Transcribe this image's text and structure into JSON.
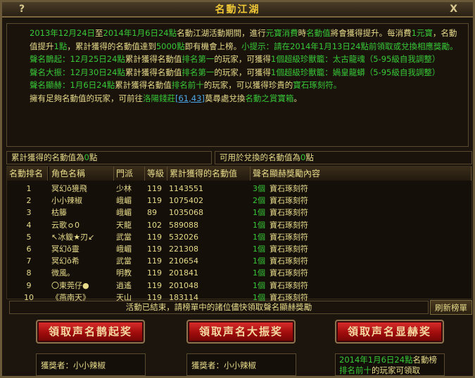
{
  "window": {
    "title": "名動江湖",
    "help": "?",
    "close": "X"
  },
  "intro": [
    [
      [
        "g",
        "2013年12月24日"
      ],
      [
        "y",
        "至"
      ],
      [
        "g",
        "2014年1月6日24點"
      ],
      [
        "y",
        "名動江湖活動期間，進行"
      ],
      [
        "g",
        "元寶消費"
      ],
      [
        "y",
        "時"
      ],
      [
        "g",
        "名動值"
      ],
      [
        "y",
        "將會獲得提升。每消費"
      ],
      [
        "g",
        "1元寶"
      ],
      [
        "y",
        "，名動值提升"
      ],
      [
        "g",
        "1點"
      ],
      [
        "y",
        "，累計獲得的名動值達到"
      ],
      [
        "g",
        "5000點"
      ],
      [
        "y",
        "即有機會上榜。"
      ],
      [
        "g",
        "小提示：請在2014年1月13日24點前領取或兌換相應獎勵。"
      ]
    ],
    [
      [
        "g",
        "聲名鵲起：12月25日24點"
      ],
      [
        "y",
        "累計獲得名動值"
      ],
      [
        "g",
        "排名第一"
      ],
      [
        "y",
        "的玩家，可獲得"
      ],
      [
        "g",
        "1個超級珍獸籠：太古龍魂（5-95級自我調整）"
      ]
    ],
    [
      [
        "g",
        "聲名大振：12月30日24點"
      ],
      [
        "y",
        "累計獲得名動值"
      ],
      [
        "g",
        "排名第一"
      ],
      [
        "y",
        "的玩家，可獲得"
      ],
      [
        "g",
        "1個超級珍獸籠：媧皇龍蟒（5-95級自我調整）"
      ]
    ],
    [
      [
        "g",
        "聲名顯赫：1月6日24點"
      ],
      [
        "y",
        "累計獲得名動值"
      ],
      [
        "g",
        "排名前十"
      ],
      [
        "y",
        "的玩家，可以獲得珍貴的"
      ],
      [
        "g",
        "寶石琢刻符。"
      ]
    ],
    [
      [
        "y",
        "擁有足夠名動值的玩家，可前往"
      ],
      [
        "g",
        "洛陽錢莊"
      ],
      [
        "b",
        "[61,43]"
      ],
      [
        "y",
        "莫尋處兌換"
      ],
      [
        "g",
        "名動之賞寶箱"
      ],
      [
        "y",
        "。"
      ]
    ]
  ],
  "summary": {
    "total": [
      [
        "y",
        "累計獲得的名動值為"
      ],
      [
        "g",
        "0"
      ],
      [
        "y",
        "點"
      ]
    ],
    "exchangeable": [
      [
        "y",
        "可用於兌換的名動值為"
      ],
      [
        "g",
        "0"
      ],
      [
        "y",
        "點"
      ]
    ]
  },
  "table": {
    "headers": [
      "名動排名",
      "角色名稱",
      "門派",
      "等級",
      "累計獲得的名動值",
      "聲名顯赫獎勵內容"
    ],
    "rows": [
      {
        "rank": "1",
        "name": "冥幻ǒ獍飛",
        "sect": "少林",
        "level": "119",
        "value": "1143551",
        "count": "3個",
        "reward": "寶石琢刻符"
      },
      {
        "rank": "2",
        "name": "小小辣椒",
        "sect": "峨嵋",
        "level": "119",
        "value": "1075402",
        "count": "2個",
        "reward": "寶石琢刻符"
      },
      {
        "rank": "3",
        "name": "枯籐",
        "sect": "峨嵋",
        "level": "89",
        "value": "1035068",
        "count": "1個",
        "reward": "寶石琢刻符"
      },
      {
        "rank": "4",
        "name": "云歌ｏ0",
        "sect": "天龍",
        "level": "102",
        "value": "589088",
        "count": "1個",
        "reward": "寶石琢刻符"
      },
      {
        "rank": "5",
        "name": "↖冰鏇★刃↙",
        "sect": "武當",
        "level": "119",
        "value": "532026",
        "count": "1個",
        "reward": "寶石琢刻符"
      },
      {
        "rank": "6",
        "name": "冥幻ǒ靈",
        "sect": "峨嵋",
        "level": "119",
        "value": "221308",
        "count": "1個",
        "reward": "寶石琢刻符"
      },
      {
        "rank": "7",
        "name": "冥幻ǒ希",
        "sect": "武當",
        "level": "119",
        "value": "210654",
        "count": "1個",
        "reward": "寶石琢刻符"
      },
      {
        "rank": "8",
        "name": "微風。",
        "sect": "明教",
        "level": "119",
        "value": "201841",
        "count": "1個",
        "reward": "寶石琢刻符"
      },
      {
        "rank": "9",
        "name": "〇東莞仔●",
        "sect": "逍遙",
        "level": "119",
        "value": "201048",
        "count": "1個",
        "reward": "寶石琢刻符"
      },
      {
        "rank": "10",
        "name": "《燕南天》",
        "sect": "天山",
        "level": "119",
        "value": "183114",
        "count": "1個",
        "reward": "寶石琢刻符"
      }
    ]
  },
  "status": "活動已結束，請榜單中的諸位儘快領取聲名顯赫獎勵",
  "refresh_label": "刷新榜單",
  "buttons": [
    "領取声名鹊起奖",
    "領取声名大振奖",
    "領取声名显赫奖"
  ],
  "winners": [
    "獲獎者：小小辣椒",
    "獲獎者：小小辣椒"
  ],
  "note": [
    [
      [
        "g",
        "2014年1月6日24點"
      ],
      [
        "y",
        "名動榜"
      ]
    ],
    [
      [
        "g",
        "排名前十"
      ],
      [
        "y",
        "的玩家可領取"
      ]
    ]
  ],
  "colors": {
    "yellow": "#e8dc8c",
    "green": "#38c838",
    "link": "#4aa8e8",
    "button": "#b01010"
  }
}
